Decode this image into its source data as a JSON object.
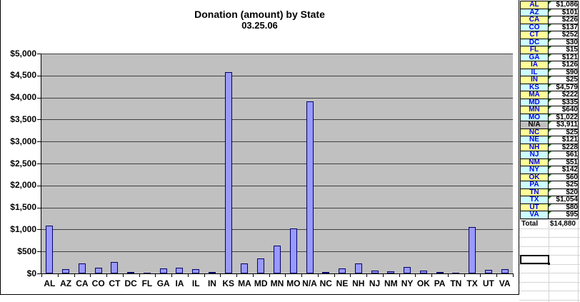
{
  "chart_data": {
    "type": "bar",
    "title": "Donation (amount) by State",
    "subtitle": "03.25.06",
    "categories": [
      "AL",
      "AZ",
      "CA",
      "CO",
      "CT",
      "DC",
      "FL",
      "GA",
      "IA",
      "IL",
      "IN",
      "KS",
      "MA",
      "MD",
      "MN",
      "MO",
      "N/A",
      "NC",
      "NE",
      "NH",
      "NJ",
      "NM",
      "NY",
      "OK",
      "PA",
      "TN",
      "TX",
      "UT",
      "VA"
    ],
    "values": [
      1086,
      101,
      226,
      137,
      252,
      30,
      15,
      121,
      126,
      90,
      25,
      4579,
      222,
      335,
      640,
      1022,
      3911,
      25,
      121,
      228,
      61,
      51,
      142,
      60,
      25,
      20,
      1054,
      80,
      95
    ],
    "xlabel": "",
    "ylabel": "",
    "ylim": [
      0,
      5000
    ],
    "ytick_step": 500,
    "ytick_labels": [
      "$0",
      "$500",
      "$1,000",
      "$1,500",
      "$2,000",
      "$2,500",
      "$3,000",
      "$3,500",
      "$4,000",
      "$4,500",
      "$5,000"
    ],
    "grid": true,
    "legend": "none",
    "bar_color": "#9999FF",
    "bar_border_color": "#000066",
    "plot_bg_color": "#C0C0C0"
  },
  "table": {
    "rows": [
      {
        "state": "AL",
        "amount": "$1,086",
        "bg": "yellow"
      },
      {
        "state": "AZ",
        "amount": "$101",
        "bg": "cyan"
      },
      {
        "state": "CA",
        "amount": "$226",
        "bg": "yellow"
      },
      {
        "state": "CO",
        "amount": "$137",
        "bg": "cyan"
      },
      {
        "state": "CT",
        "amount": "$252",
        "bg": "yellow"
      },
      {
        "state": "DC",
        "amount": "$30",
        "bg": "cyan"
      },
      {
        "state": "FL",
        "amount": "$15",
        "bg": "yellow"
      },
      {
        "state": "GA",
        "amount": "$121",
        "bg": "cyan"
      },
      {
        "state": "IA",
        "amount": "$126",
        "bg": "yellow"
      },
      {
        "state": "IL",
        "amount": "$90",
        "bg": "cyan"
      },
      {
        "state": "IN",
        "amount": "$25",
        "bg": "yellow"
      },
      {
        "state": "KS",
        "amount": "$4,579",
        "bg": "cyan"
      },
      {
        "state": "MA",
        "amount": "$222",
        "bg": "yellow"
      },
      {
        "state": "MD",
        "amount": "$335",
        "bg": "cyan"
      },
      {
        "state": "MN",
        "amount": "$640",
        "bg": "yellow"
      },
      {
        "state": "MO",
        "amount": "$1,022",
        "bg": "cyan"
      },
      {
        "state": "N/A",
        "amount": "$3,911",
        "bg": "gray"
      },
      {
        "state": "NC",
        "amount": "$25",
        "bg": "yellow"
      },
      {
        "state": "NE",
        "amount": "$121",
        "bg": "cyan"
      },
      {
        "state": "NH",
        "amount": "$228",
        "bg": "yellow"
      },
      {
        "state": "NJ",
        "amount": "$61",
        "bg": "cyan"
      },
      {
        "state": "NM",
        "amount": "$51",
        "bg": "yellow"
      },
      {
        "state": "NY",
        "amount": "$142",
        "bg": "cyan"
      },
      {
        "state": "OK",
        "amount": "$60",
        "bg": "yellow"
      },
      {
        "state": "PA",
        "amount": "$25",
        "bg": "cyan"
      },
      {
        "state": "TN",
        "amount": "$20",
        "bg": "yellow"
      },
      {
        "state": "TX",
        "amount": "$1,054",
        "bg": "cyan"
      },
      {
        "state": "UT",
        "amount": "$80",
        "bg": "yellow"
      },
      {
        "state": "VA",
        "amount": "$95",
        "bg": "cyan"
      }
    ],
    "total_label": "Total",
    "total_value": "$14,880"
  },
  "colors": {
    "cell_yellow": "#FFFF99",
    "cell_cyan": "#CCFFFF",
    "cell_gray": "#C0C0C0",
    "state_text": "#0000EE",
    "indicator_green": "#008000"
  },
  "icons": {
    "cell_indicator": "green-corner-triangle"
  }
}
